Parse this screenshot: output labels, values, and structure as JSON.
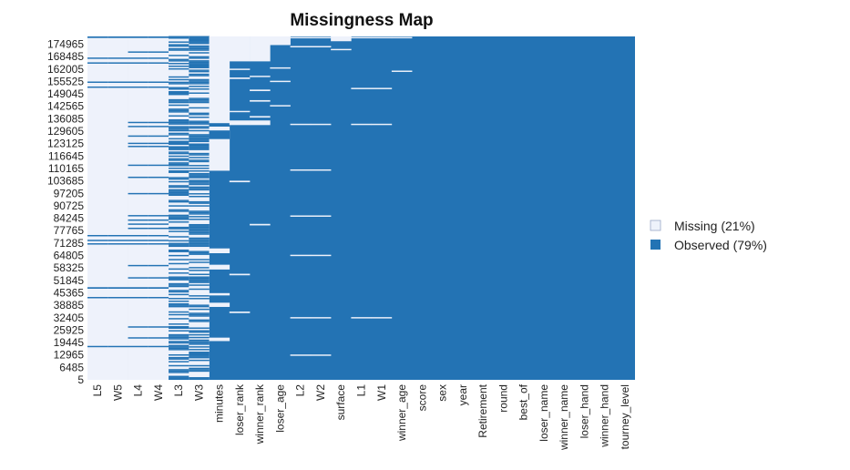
{
  "chart_data": {
    "type": "heatmap",
    "title": "Missingness Map",
    "colors": {
      "missing": "#EEF2FB",
      "observed": "#2373B4"
    },
    "legend": {
      "placement": "right",
      "entries": [
        {
          "key": "missing",
          "label": "Missing (21%)"
        },
        {
          "key": "observed",
          "label": "Observed (79%)"
        }
      ]
    },
    "row_ticks": [
      "174965",
      "168485",
      "162005",
      "155525",
      "149045",
      "142565",
      "136085",
      "129605",
      "123125",
      "116645",
      "110165",
      "103685",
      "97205",
      "90725",
      "84245",
      "77765",
      "71285",
      "64805",
      "58325",
      "51845",
      "45365",
      "38885",
      "32405",
      "25925",
      "19445",
      "12965",
      "6485",
      "5"
    ],
    "row_range": [
      5,
      179000
    ],
    "columns": [
      {
        "name": "L5",
        "missing": [
          [
            0,
            179000
          ]
        ],
        "observed": [
          [
            17000,
            17700
          ],
          [
            42500,
            43200
          ],
          [
            47500,
            48300
          ],
          [
            70500,
            71200
          ],
          [
            72300,
            73000
          ],
          [
            74800,
            75500
          ],
          [
            152200,
            152900
          ],
          [
            154800,
            155500
          ],
          [
            164800,
            165500
          ],
          [
            167300,
            168000
          ],
          [
            178200,
            179000
          ]
        ]
      },
      {
        "name": "W5",
        "missing": [
          [
            0,
            179000
          ]
        ],
        "observed": [
          [
            17000,
            17700
          ],
          [
            42500,
            43200
          ],
          [
            47500,
            48300
          ],
          [
            70500,
            71200
          ],
          [
            72300,
            73000
          ],
          [
            74800,
            75500
          ],
          [
            152200,
            152900
          ],
          [
            154800,
            155500
          ],
          [
            164800,
            165500
          ],
          [
            167300,
            168000
          ],
          [
            178200,
            179000
          ]
        ]
      },
      {
        "name": "L4",
        "missing": [
          [
            0,
            179000
          ]
        ],
        "observed": [
          [
            17000,
            17700
          ],
          [
            21500,
            22200
          ],
          [
            27200,
            27900
          ],
          [
            42500,
            43200
          ],
          [
            47500,
            48300
          ],
          [
            52800,
            53500
          ],
          [
            59200,
            59900
          ],
          [
            70500,
            71200
          ],
          [
            72300,
            73000
          ],
          [
            74800,
            75500
          ],
          [
            78600,
            79300
          ],
          [
            80800,
            81500
          ],
          [
            82900,
            83600
          ],
          [
            85200,
            85900
          ],
          [
            96700,
            97400
          ],
          [
            105200,
            105900
          ],
          [
            111500,
            112200
          ],
          [
            121300,
            122000
          ],
          [
            122900,
            123600
          ],
          [
            126700,
            127400
          ],
          [
            131700,
            132400
          ],
          [
            133800,
            134500
          ],
          [
            152200,
            152900
          ],
          [
            154800,
            155500
          ],
          [
            164800,
            165500
          ],
          [
            167300,
            168000
          ],
          [
            170500,
            171200
          ],
          [
            178200,
            179000
          ]
        ]
      },
      {
        "name": "W4",
        "missing": [
          [
            0,
            179000
          ]
        ],
        "observed": [
          [
            17000,
            17700
          ],
          [
            21500,
            22200
          ],
          [
            27200,
            27900
          ],
          [
            42500,
            43200
          ],
          [
            47500,
            48300
          ],
          [
            52800,
            53500
          ],
          [
            59200,
            59900
          ],
          [
            70500,
            71200
          ],
          [
            72300,
            73000
          ],
          [
            74800,
            75500
          ],
          [
            78600,
            79300
          ],
          [
            80800,
            81500
          ],
          [
            82900,
            83600
          ],
          [
            85200,
            85900
          ],
          [
            96700,
            97400
          ],
          [
            105200,
            105900
          ],
          [
            111500,
            112200
          ],
          [
            121300,
            122000
          ],
          [
            122900,
            123600
          ],
          [
            126700,
            127400
          ],
          [
            131700,
            132400
          ],
          [
            133800,
            134500
          ],
          [
            152200,
            152900
          ],
          [
            154800,
            155500
          ],
          [
            164800,
            165500
          ],
          [
            167300,
            168000
          ],
          [
            170500,
            171200
          ],
          [
            178200,
            179000
          ]
        ]
      },
      {
        "name": "L3",
        "missing": [
          [
            0,
            179000
          ]
        ],
        "stripes": {
          "seed": 12345,
          "block": 700,
          "observed_prob": 0.55
        }
      },
      {
        "name": "W3",
        "missing": [
          [
            0,
            179000
          ]
        ],
        "stripes": {
          "seed": 67890,
          "block": 700,
          "observed_prob": 0.55
        }
      },
      {
        "name": "minutes",
        "missing": [
          [
            109000,
            179000
          ],
          [
            20200,
            22000
          ],
          [
            38000,
            40200
          ],
          [
            57500,
            60000
          ],
          [
            66000,
            68500
          ],
          [
            44000,
            45200
          ]
        ],
        "observed": [
          [
            132000,
            133800
          ],
          [
            125500,
            130000
          ]
        ]
      },
      {
        "name": "loser_rank",
        "missing": [
          [
            166000,
            179000
          ],
          [
            132800,
            135200
          ],
          [
            156800,
            157600
          ],
          [
            139500,
            140200
          ],
          [
            161500,
            162200
          ],
          [
            103000,
            103800
          ],
          [
            54500,
            55300
          ],
          [
            34800,
            35600
          ]
        ]
      },
      {
        "name": "winner_rank",
        "missing": [
          [
            166000,
            179000
          ],
          [
            132800,
            135200
          ],
          [
            136700,
            137500
          ],
          [
            145000,
            145800
          ],
          [
            150500,
            151300
          ],
          [
            157800,
            158500
          ],
          [
            80500,
            81300
          ]
        ]
      },
      {
        "name": "loser_age",
        "missing": [
          [
            174500,
            179000
          ],
          [
            162200,
            162900
          ],
          [
            155200,
            155900
          ],
          [
            142500,
            143200
          ]
        ]
      },
      {
        "name": "L2",
        "missing": [
          [
            178000,
            178700
          ],
          [
            173300,
            174000
          ],
          [
            132800,
            133500
          ],
          [
            109000,
            109700
          ],
          [
            85000,
            85700
          ],
          [
            64500,
            65200
          ],
          [
            32000,
            32700
          ],
          [
            12500,
            13200
          ]
        ]
      },
      {
        "name": "W2",
        "missing": [
          [
            178000,
            178700
          ],
          [
            173300,
            174000
          ],
          [
            132800,
            133500
          ],
          [
            109000,
            109700
          ],
          [
            85000,
            85700
          ],
          [
            64500,
            65200
          ],
          [
            32000,
            32700
          ],
          [
            12500,
            13200
          ]
        ]
      },
      {
        "name": "surface",
        "missing": [
          [
            176500,
            179000
          ],
          [
            171800,
            172500
          ]
        ]
      },
      {
        "name": "L1",
        "missing": [
          [
            178000,
            178700
          ],
          [
            151500,
            152200
          ],
          [
            132800,
            133500
          ],
          [
            32000,
            32700
          ]
        ]
      },
      {
        "name": "W1",
        "missing": [
          [
            178000,
            178700
          ],
          [
            151500,
            152200
          ],
          [
            132800,
            133500
          ],
          [
            32000,
            32700
          ]
        ]
      },
      {
        "name": "winner_age",
        "missing": [
          [
            178000,
            178700
          ],
          [
            160500,
            161200
          ]
        ]
      },
      {
        "name": "score",
        "missing": []
      },
      {
        "name": "sex",
        "missing": []
      },
      {
        "name": "year",
        "missing": []
      },
      {
        "name": "Retirement",
        "missing": []
      },
      {
        "name": "round",
        "missing": []
      },
      {
        "name": "best_of",
        "missing": []
      },
      {
        "name": "loser_name",
        "missing": []
      },
      {
        "name": "winner_name",
        "missing": []
      },
      {
        "name": "loser_hand",
        "missing": []
      },
      {
        "name": "winner_hand",
        "missing": []
      },
      {
        "name": "tourney_level",
        "missing": []
      }
    ]
  }
}
